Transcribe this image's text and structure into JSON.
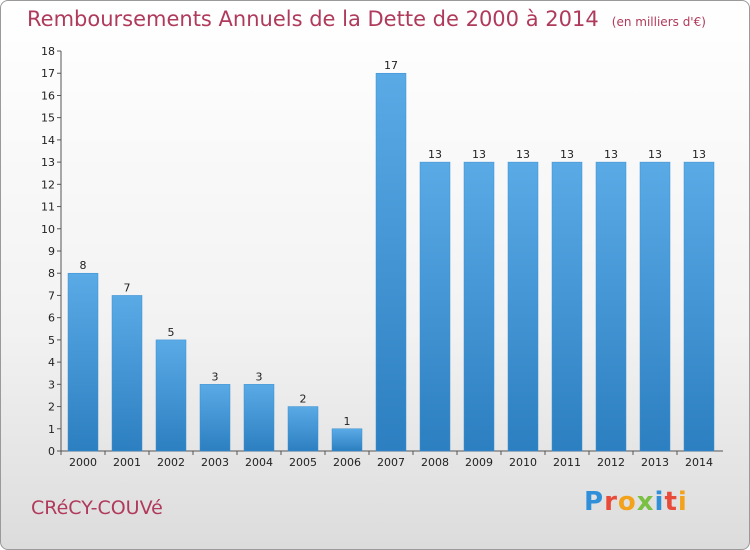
{
  "header": {
    "title": "Remboursements Annuels de la Dette de 2000 à 2014",
    "unit": "(en milliers d'€)"
  },
  "footer": {
    "commune": "CRéCY-COUVé",
    "brand": "Proxiti"
  },
  "colors": {
    "title": "#b03a5b",
    "bar_light": "#5aaae6",
    "bar_dark": "#2c7fc0"
  },
  "chart_data": {
    "type": "bar",
    "title": "Remboursements Annuels de la Dette de 2000 à 2014",
    "categories": [
      "2000",
      "2001",
      "2002",
      "2003",
      "2004",
      "2005",
      "2006",
      "2007",
      "2008",
      "2009",
      "2010",
      "2011",
      "2012",
      "2013",
      "2014"
    ],
    "values": [
      8,
      7,
      5,
      3,
      3,
      2,
      1,
      17,
      13,
      13,
      13,
      13,
      13,
      13,
      13
    ],
    "ylim": [
      0,
      18
    ],
    "yticks": [
      "0",
      "1",
      "2",
      "3",
      "4",
      "5",
      "6",
      "7",
      "8",
      "9",
      "10",
      "11",
      "12",
      "13",
      "14",
      "15",
      "16",
      "17",
      "18"
    ],
    "grid": false
  }
}
